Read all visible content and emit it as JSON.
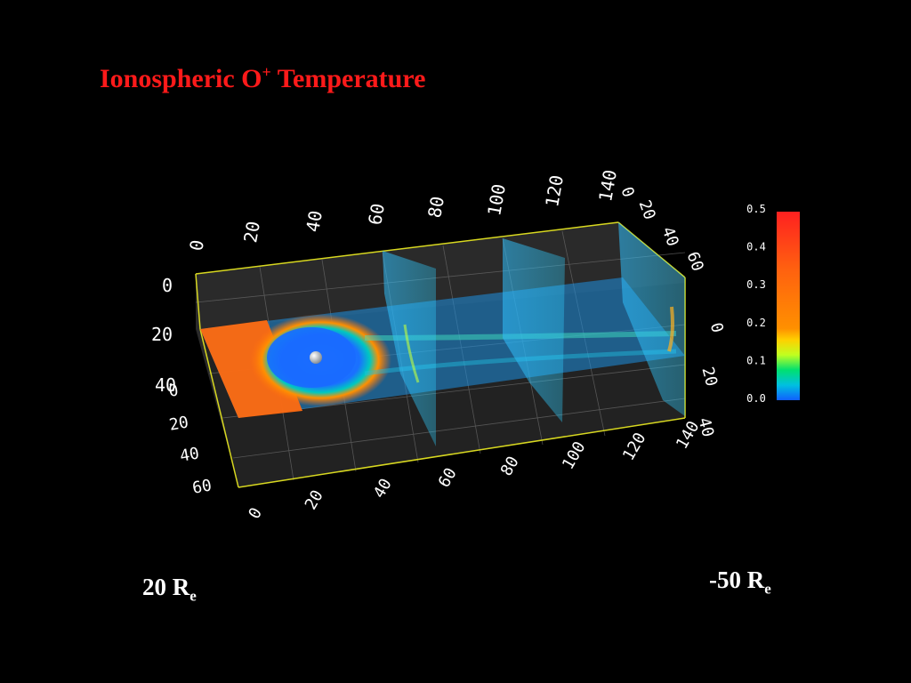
{
  "title": {
    "prefix": "Ionospheric O",
    "superscript": "+",
    "suffix": " Temperature"
  },
  "labels": {
    "left": {
      "value": "20 R",
      "subscript": "e"
    },
    "right": {
      "value": "-50 R",
      "subscript": "e"
    }
  },
  "axes": {
    "x_top_ticks": [
      "0",
      "20",
      "40",
      "60",
      "80",
      "100",
      "120",
      "140"
    ],
    "x_bottom_ticks": [
      "0",
      "20",
      "40",
      "60",
      "80",
      "100",
      "120",
      "140"
    ],
    "y_left_top_ticks": [
      "0",
      "20",
      "40"
    ],
    "y_left_bottom_ticks": [
      "0",
      "20",
      "40",
      "60"
    ],
    "right_top_ticks": [
      "0",
      "20",
      "40",
      "60"
    ],
    "right_side_ticks": [
      "0",
      "20",
      "40"
    ]
  },
  "colorbar": {
    "ticks": [
      "0.5",
      "0.4",
      "0.3",
      "0.2",
      "0.1",
      "0.0"
    ],
    "colors": [
      "#ff2020",
      "#ff6010",
      "#ff9000",
      "#ffd000",
      "#c0ff20",
      "#00e070",
      "#00c0e0",
      "#1060ff"
    ]
  },
  "colors": {
    "title": "#ff1a1a",
    "frame": "#d8d820",
    "background": "#000000"
  },
  "objects": [
    "earth-sphere"
  ]
}
